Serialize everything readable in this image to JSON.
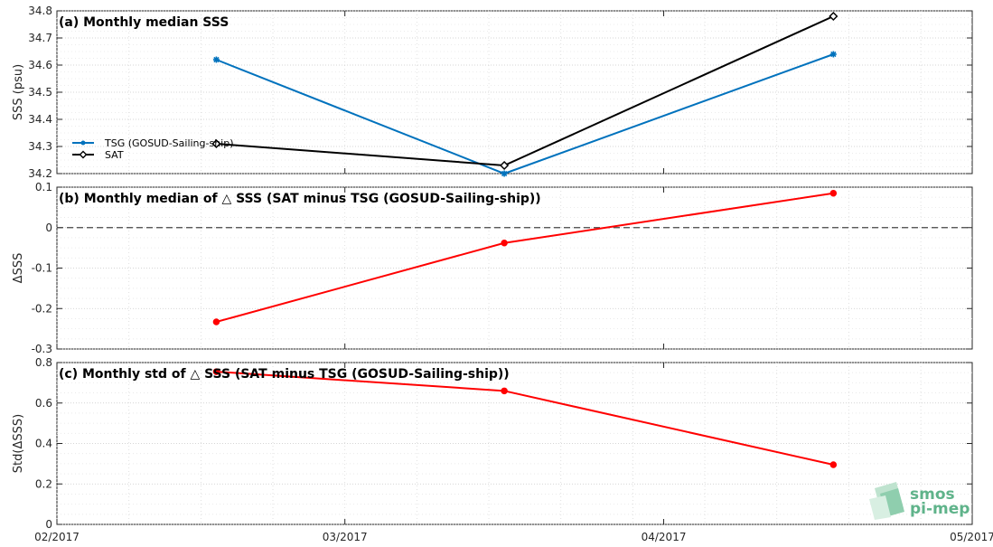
{
  "chart_data": [
    {
      "type": "line",
      "title": "(a) Monthly median SSS",
      "ylabel": "SSS (psu)",
      "ylim": [
        34.2,
        34.8
      ],
      "yticks": [
        "34.2",
        "34.3",
        "34.4",
        "34.5",
        "34.6",
        "34.7",
        "34.8"
      ],
      "ytick_values": [
        34.2,
        34.3,
        34.4,
        34.5,
        34.6,
        34.7,
        34.8
      ],
      "x": [
        15.5,
        43.5,
        75.5
      ],
      "grid": true,
      "legend_placement": "bottom-left",
      "series": [
        {
          "name": "TSG (GOSUD-Sailing-ship)",
          "values": [
            34.62,
            34.2,
            34.64
          ],
          "color": "#0072bd",
          "marker": "asterisk"
        },
        {
          "name": "SAT",
          "values": [
            34.31,
            34.23,
            34.78
          ],
          "color": "#000000",
          "marker": "diamond"
        }
      ]
    },
    {
      "type": "line",
      "title": "(b) Monthly median of △ SSS (SAT minus TSG (GOSUD-Sailing-ship))",
      "ylabel": "ΔSSS",
      "ylim": [
        -0.3,
        0.1
      ],
      "yticks": [
        "-0.3",
        "-0.2",
        "-0.1",
        "0",
        "0.1"
      ],
      "ytick_values": [
        -0.3,
        -0.2,
        -0.1,
        0,
        0.1
      ],
      "x": [
        15.5,
        43.5,
        75.5
      ],
      "zero_line": true,
      "grid": true,
      "series": [
        {
          "values": [
            -0.233,
            -0.038,
            0.085
          ],
          "color": "#ff0000",
          "marker": "circle"
        }
      ]
    },
    {
      "type": "line",
      "title": "(c) Monthly std of △ SSS (SAT minus TSG (GOSUD-Sailing-ship))",
      "ylabel": "Std(ΔSSS)",
      "ylim": [
        0,
        0.8
      ],
      "yticks": [
        "0",
        "0.2",
        "0.4",
        "0.6",
        "0.8"
      ],
      "ytick_values": [
        0,
        0.2,
        0.4,
        0.6,
        0.8
      ],
      "x": [
        15.5,
        43.5,
        75.5
      ],
      "grid": true,
      "series": [
        {
          "values": [
            0.755,
            0.66,
            0.295
          ],
          "color": "#ff0000",
          "marker": "circle"
        }
      ]
    }
  ],
  "xaxis": {
    "range": [
      0,
      89
    ],
    "major_ticks": [
      0,
      28,
      59,
      89
    ],
    "major_tick_labels": [
      "02/2017",
      "03/2017",
      "04/2017",
      "05/2017"
    ]
  },
  "logo": {
    "line1": "smos",
    "line2": "pi-mep",
    "color": "#5fb38a"
  }
}
